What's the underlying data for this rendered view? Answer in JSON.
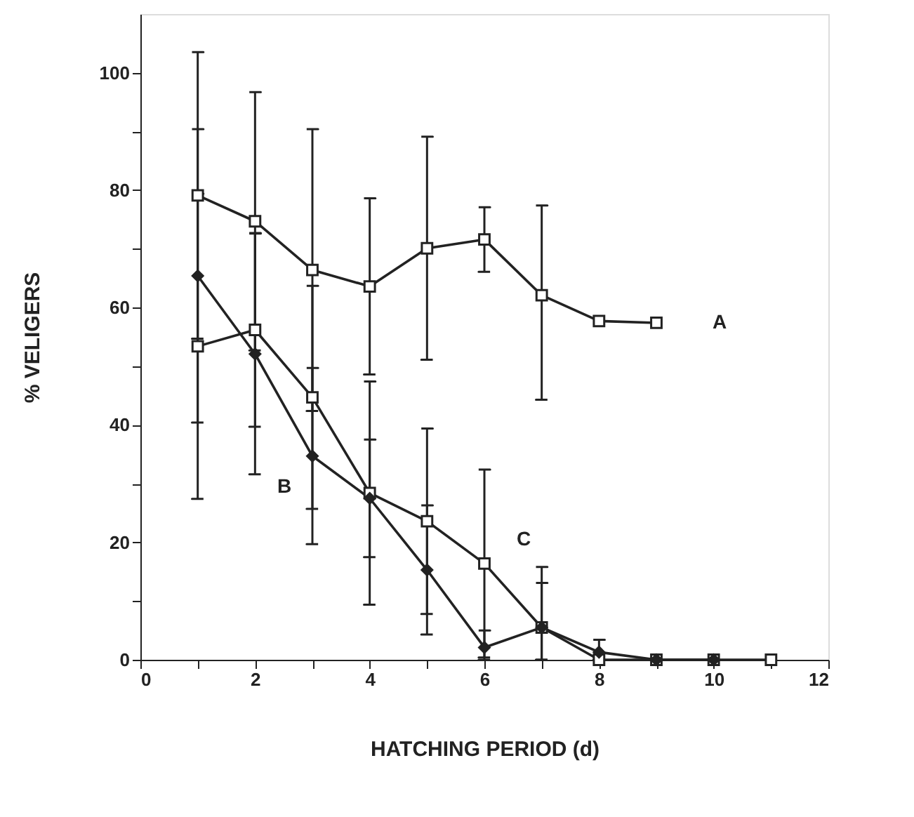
{
  "chart_data": {
    "type": "line",
    "xlabel": "HATCHING PERIOD (d)",
    "ylabel": "% VELIGERS",
    "xlim": [
      0,
      12
    ],
    "ylim": [
      0,
      110
    ],
    "xticks": [
      0,
      {
        "value": 1,
        "label": null
      },
      2,
      {
        "value": 3,
        "label": null
      },
      4,
      {
        "value": 5,
        "label": null
      },
      6,
      {
        "value": 7,
        "label": null
      },
      8,
      {
        "value": 9,
        "label": null
      },
      10,
      {
        "value": 11,
        "label": null
      },
      12
    ],
    "yticks": [
      0,
      {
        "value": 10,
        "label": null
      },
      20,
      {
        "value": 30,
        "label": null
      },
      40,
      {
        "value": 50,
        "label": null
      },
      60,
      {
        "value": 70,
        "label": null
      },
      80,
      {
        "value": 90,
        "label": null
      },
      100
    ],
    "grid": false,
    "legend": false,
    "line_style": "solid",
    "series": [
      {
        "name": "A",
        "color": "#222222",
        "marker": "square",
        "x": [
          1,
          2,
          3,
          4,
          5,
          6,
          7,
          8,
          9
        ],
        "values": [
          79.1,
          74.7,
          66.4,
          63.6,
          70.1,
          71.6,
          62.1,
          57.7,
          57.4
        ],
        "errors": [
          24.4,
          22,
          24,
          15,
          19,
          5.5,
          [
            44.3,
            77.4
          ],
          null,
          null
        ]
      },
      {
        "name": "B",
        "color": "#222222",
        "marker": "diamond",
        "x": [
          1,
          2,
          3,
          4,
          5,
          6,
          7,
          8,
          9,
          10
        ],
        "values": [
          65.4,
          52.1,
          34.7,
          27.5,
          15.3,
          2.1,
          5.5,
          1.3,
          0,
          0
        ],
        "errors": [
          25,
          20.5,
          15,
          10,
          11,
          [
            0,
            5
          ],
          [
            0,
            15.8
          ],
          [
            0,
            3.4
          ],
          null,
          null
        ]
      },
      {
        "name": "C",
        "color": "#222222",
        "marker": "square",
        "x": [
          1,
          2,
          3,
          4,
          5,
          6,
          7,
          8,
          9,
          10,
          11
        ],
        "values": [
          53.4,
          56.2,
          44.7,
          28.4,
          23.6,
          16.4,
          5.5,
          0,
          0,
          0,
          0
        ],
        "errors": [
          26,
          16.5,
          19,
          19,
          15.8,
          16,
          [
            0,
            13.1
          ],
          null,
          null,
          null,
          null
        ]
      }
    ]
  }
}
